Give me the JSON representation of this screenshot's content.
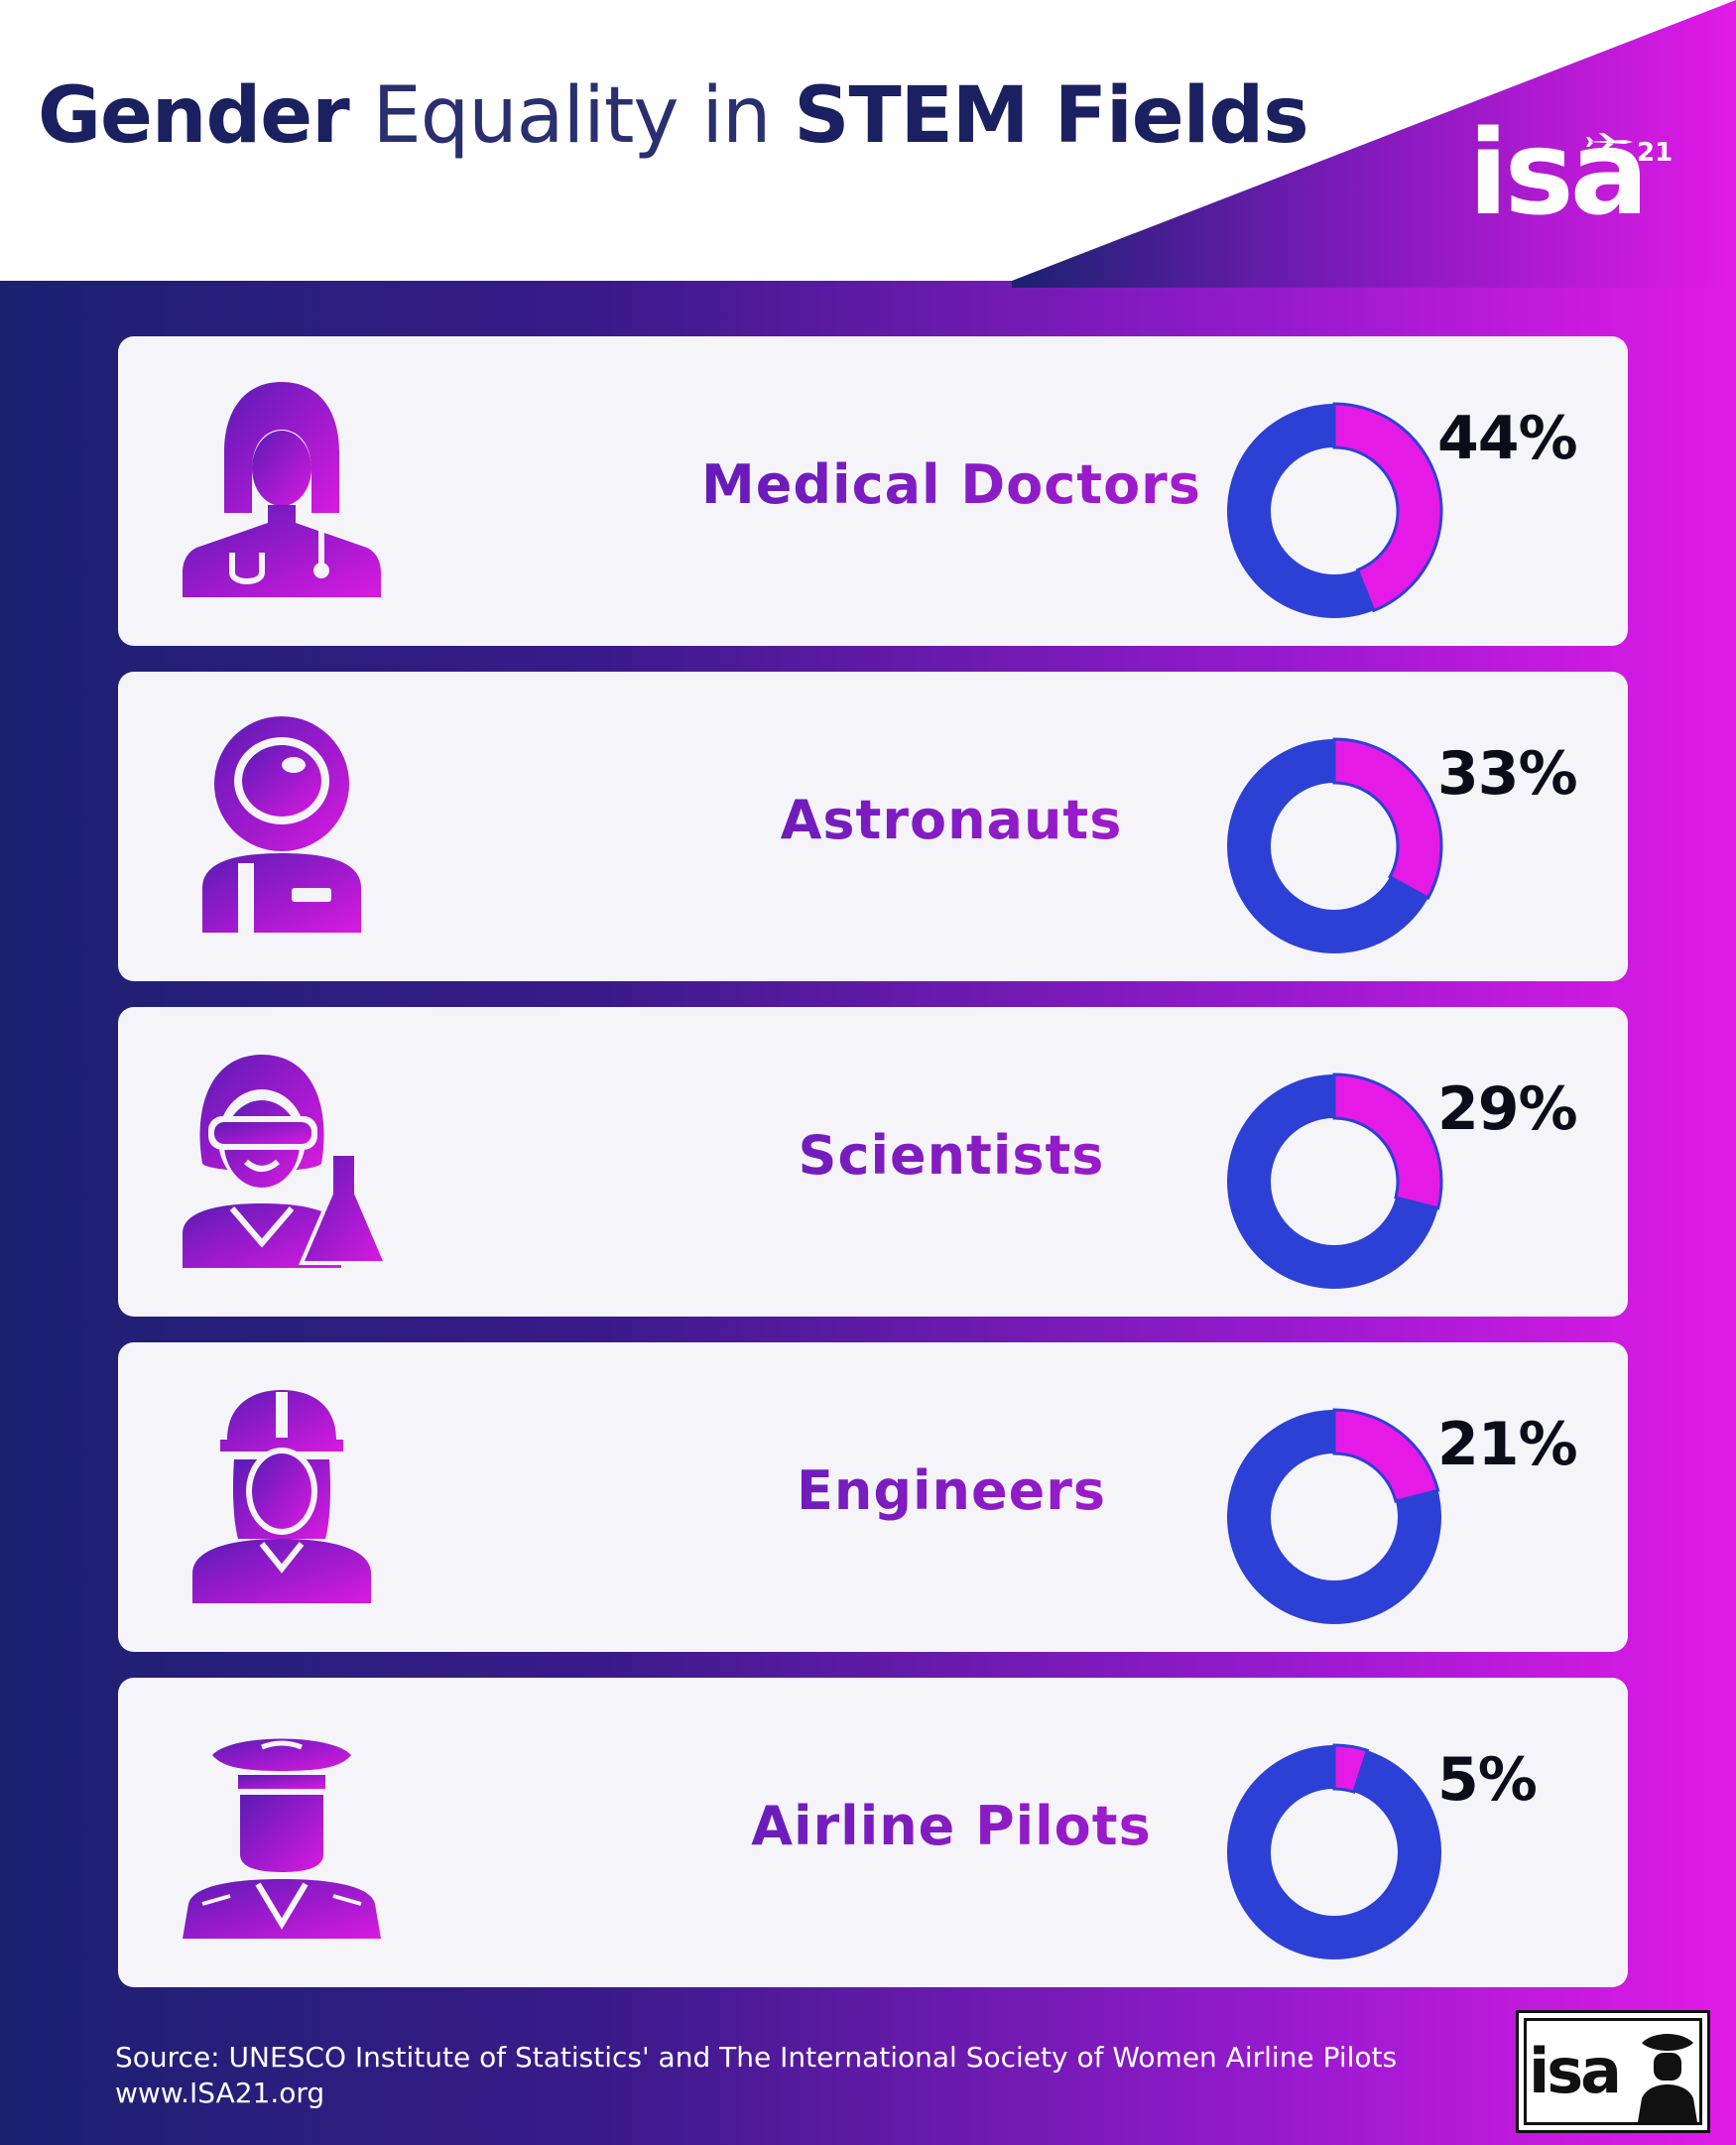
{
  "title": {
    "part1": "Gender",
    "part2": "Equality in",
    "part3": "STEM Fields"
  },
  "brand": {
    "logo_text": "isa",
    "logo_number": "21"
  },
  "colors": {
    "accent_magenta": "#e61ae6",
    "accent_blue": "#2d40d6",
    "title_navy": "#1b2060",
    "label_gradient_start": "#4a1db0",
    "label_gradient_end": "#c11ad8"
  },
  "cards": [
    {
      "label": "Medical Doctors",
      "percent_label": "44%",
      "icon": "female-doctor-icon"
    },
    {
      "label": "Astronauts",
      "percent_label": "33%",
      "icon": "astronaut-icon"
    },
    {
      "label": "Scientists",
      "percent_label": "29%",
      "icon": "female-scientist-icon"
    },
    {
      "label": "Engineers",
      "percent_label": "21%",
      "icon": "female-engineer-icon"
    },
    {
      "label": "Airline Pilots",
      "percent_label": "5%",
      "icon": "female-pilot-icon"
    }
  ],
  "chart_data": {
    "type": "pie",
    "variant": "donut",
    "categories": [
      "Medical Doctors",
      "Astronauts",
      "Scientists",
      "Engineers",
      "Airline Pilots"
    ],
    "values": [
      44,
      33,
      29,
      21,
      5
    ],
    "unit": "%",
    "highlight_color": "#e61ae6",
    "remainder_color": "#2d40d6"
  },
  "source": {
    "line1": "Source: UNESCO Institute of Statistics' and The International Society of Women Airline Pilots",
    "line2": "www.ISA21.org"
  }
}
